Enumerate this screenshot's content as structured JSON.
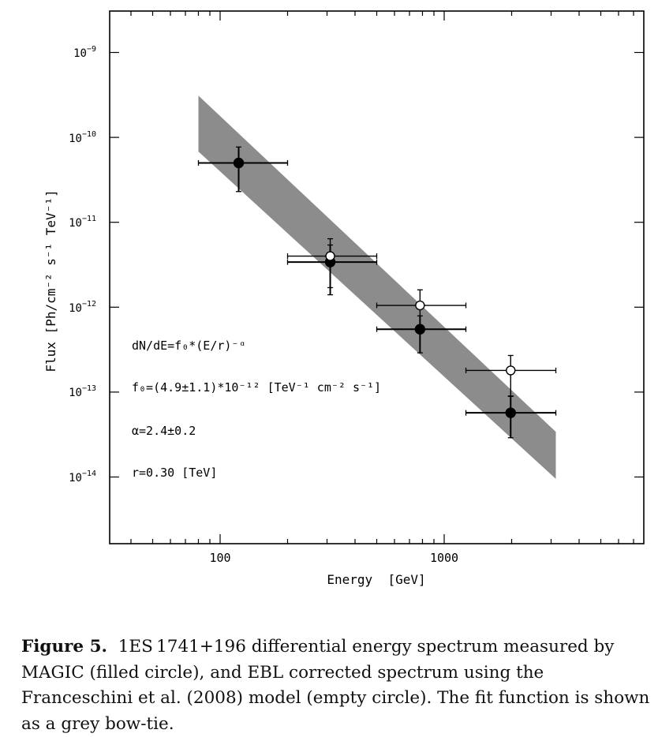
{
  "chart_data": {
    "type": "scatter",
    "xlabel": "Energy  [GeV]",
    "ylabel": "Flux [Ph/cm⁻² s⁻¹ TeV⁻¹]",
    "xscale": "log",
    "yscale": "log",
    "xlim": [
      30,
      8500
    ],
    "ylim": [
      1.5e-15,
      3e-09
    ],
    "x_tick_labels": [
      {
        "value": 100,
        "label": "100"
      },
      {
        "value": 1000,
        "label": "1000"
      }
    ],
    "y_tick_labels": [
      {
        "value": 1e-09,
        "base": "10",
        "exp": "−9"
      },
      {
        "value": 1e-10,
        "base": "10",
        "exp": "−10"
      },
      {
        "value": 1e-11,
        "base": "10",
        "exp": "−11"
      },
      {
        "value": 1e-12,
        "base": "10",
        "exp": "−12"
      },
      {
        "value": 1e-13,
        "base": "10",
        "exp": "−13"
      },
      {
        "value": 1e-14,
        "base": "10",
        "exp": "−14"
      }
    ],
    "series": [
      {
        "marker": "filled-circle",
        "points": [
          {
            "x": 121,
            "y": 5e-11,
            "xlo": 80,
            "xhi": 200,
            "ylo": 2.3e-11,
            "yhi": 7.7e-11
          },
          {
            "x": 310,
            "y": 3.4e-12,
            "xlo": 200,
            "xhi": 500,
            "ylo": 1.4e-12,
            "yhi": 5.4e-12
          },
          {
            "x": 780,
            "y": 5.5e-13,
            "xlo": 500,
            "xhi": 1250,
            "ylo": 2.9e-13,
            "yhi": 7.9e-13
          },
          {
            "x": 1980,
            "y": 5.7e-14,
            "xlo": 1250,
            "xhi": 3150,
            "ylo": 2.9e-14,
            "yhi": 8.9e-14
          }
        ]
      },
      {
        "marker": "empty-circle",
        "points": [
          {
            "x": 310,
            "y": 4e-12,
            "xlo": 200,
            "xhi": 500,
            "ylo": 1.7e-12,
            "yhi": 6.4e-12
          },
          {
            "x": 780,
            "y": 1.05e-12,
            "xlo": 500,
            "xhi": 1250,
            "ylo": 5.5e-13,
            "yhi": 1.6e-12
          },
          {
            "x": 1980,
            "y": 1.8e-13,
            "xlo": 1250,
            "xhi": 3150,
            "ylo": 9e-14,
            "yhi": 2.7e-13
          }
        ]
      }
    ],
    "bowtie": {
      "color": "#8c8c8c",
      "polygon": [
        [
          80,
          3.1e-10
        ],
        [
          3150,
          3.4e-14
        ],
        [
          3150,
          9.5e-15
        ],
        [
          80,
          6.8e-11
        ]
      ]
    },
    "annotations": [
      {
        "text": "dN/dE=f₀*(E/r)⁻ᵅ"
      },
      {
        "text": "f₀=(4.9±1.1)*10⁻¹² [TeV⁻¹ cm⁻² s⁻¹]"
      },
      {
        "text": "α=2.4±0.2"
      },
      {
        "text": "r=0.30 [TeV]"
      }
    ]
  },
  "caption": {
    "label": "Figure 5.",
    "text": "1ES 1741+196 differential energy spectrum measured by MAGIC (filled circle), and EBL corrected spectrum using the Franceschini et al. (2008) model (empty circle). The fit function is shown as a grey bow-tie."
  }
}
